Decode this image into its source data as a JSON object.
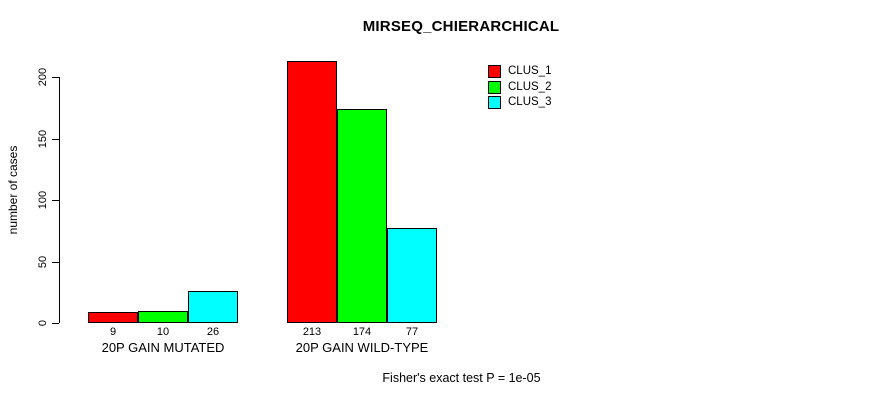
{
  "title": "MIRSEQ_CHIERARCHICAL",
  "chart_data": {
    "type": "bar",
    "title": "MIRSEQ_CHIERARCHICAL",
    "ylabel": "number of cases",
    "xlabel": "",
    "categories": [
      "20P GAIN MUTATED",
      "20P GAIN WILD-TYPE"
    ],
    "series": [
      {
        "name": "CLUS_1",
        "color": "#FF0000",
        "values": [
          9,
          213
        ]
      },
      {
        "name": "CLUS_2",
        "color": "#00FF00",
        "values": [
          10,
          174
        ]
      },
      {
        "name": "CLUS_3",
        "color": "#00FFFF",
        "values": [
          26,
          77
        ]
      }
    ],
    "yticks": [
      0,
      50,
      100,
      150,
      200
    ],
    "ylim": [
      0,
      220
    ],
    "grid": false,
    "bar_value_labels_shown": true,
    "legend": {
      "position": "top-right",
      "entries": [
        "CLUS_1",
        "CLUS_2",
        "CLUS_3"
      ]
    },
    "footer": "Fisher's exact test P = 1e-05"
  },
  "colors": {
    "background": "#FFFFFF",
    "bar_border": "#000000",
    "text": "#000000",
    "clus_1": "#FF0000",
    "clus_2": "#00FF00",
    "clus_3": "#00FFFF"
  }
}
